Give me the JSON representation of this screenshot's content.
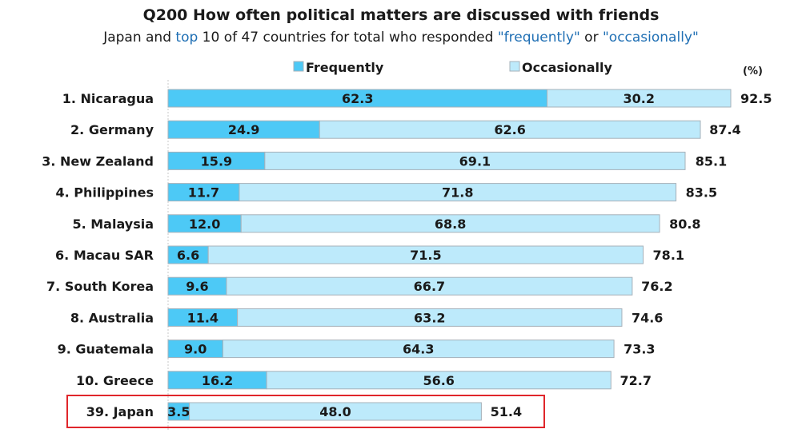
{
  "chart_data": {
    "type": "bar",
    "orientation": "horizontal",
    "stacked": true,
    "title": "Q200 How often political matters are discussed with friends",
    "subtitle": {
      "part1": "Japan and ",
      "part2": "top",
      "part3": " 10 of 47 countries for total who responded ",
      "part4": "\"frequently\"",
      "part5": " or ",
      "part6": "\"occasionally\""
    },
    "unit_label": "(%)",
    "legend_position": "top",
    "categories": [
      "1. Nicaragua",
      "2. Germany",
      "3. New Zealand",
      "4. Philippines",
      "5. Malaysia",
      "6. Macau SAR",
      "7. South Korea",
      "8. Australia",
      "9. Guatemala",
      "10. Greece",
      "39. Japan"
    ],
    "series": [
      {
        "name": "Frequently",
        "values": [
          62.3,
          24.9,
          15.9,
          11.7,
          12.0,
          6.6,
          9.6,
          11.4,
          9.0,
          16.2,
          3.5
        ],
        "labels": [
          "62.3",
          "24.9",
          "15.9",
          "11.7",
          "12.0",
          "6.6",
          "9.6",
          "11.4",
          "9.0",
          "16.2",
          "3.5"
        ]
      },
      {
        "name": "Occasionally",
        "values": [
          30.2,
          62.6,
          69.1,
          71.8,
          68.8,
          71.5,
          66.7,
          63.2,
          64.3,
          56.6,
          48.0
        ],
        "labels": [
          "30.2",
          "62.6",
          "69.1",
          "71.8",
          "68.8",
          "71.5",
          "66.7",
          "63.2",
          "64.3",
          "56.6",
          "48.0"
        ]
      }
    ],
    "totals": [
      92.5,
      87.4,
      85.1,
      83.5,
      80.8,
      78.1,
      76.2,
      74.6,
      73.3,
      72.7,
      51.4
    ],
    "total_labels": [
      "92.5",
      "87.4",
      "85.1",
      "83.5",
      "80.8",
      "78.1",
      "76.2",
      "74.6",
      "73.3",
      "72.7",
      "51.4"
    ],
    "xlim": [
      0,
      100
    ],
    "grid": false,
    "highlighted_category": "39. Japan",
    "colors": {
      "Frequently": "#4dc9f6",
      "Occasionally": "#bdeafb",
      "border": "#a6b1ba",
      "highlight": "#e0262b"
    }
  }
}
